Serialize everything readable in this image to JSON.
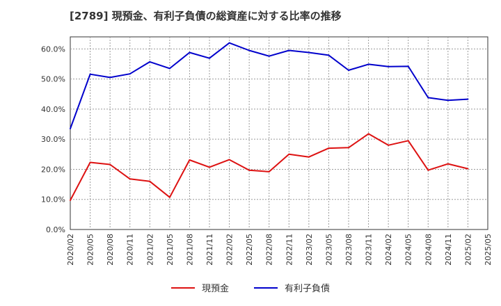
{
  "chart_data": {
    "type": "line",
    "title": "[2789]  現預金、有利子負債の総資産に対する比率の推移",
    "xlabel": "",
    "ylabel": "",
    "ylim": [
      0,
      64
    ],
    "yticks": [
      0,
      10,
      20,
      30,
      40,
      50,
      60
    ],
    "ytick_labels": [
      "0.0%",
      "10.0%",
      "20.0%",
      "30.0%",
      "40.0%",
      "50.0%",
      "60.0%"
    ],
    "x": [
      "2020/02",
      "2020/05",
      "2020/08",
      "2020/11",
      "2021/02",
      "2021/05",
      "2021/08",
      "2021/11",
      "2022/02",
      "2022/05",
      "2022/08",
      "2022/11",
      "2023/02",
      "2023/05",
      "2023/08",
      "2023/11",
      "2024/02",
      "2024/05",
      "2024/08",
      "2024/11",
      "2025/02",
      "2025/05"
    ],
    "series": [
      {
        "name": "現預金",
        "color": "#dd1111",
        "values": [
          9.7,
          22.3,
          21.6,
          16.8,
          16.0,
          10.7,
          23.1,
          20.7,
          23.2,
          19.7,
          19.2,
          25.0,
          24.1,
          27.0,
          27.2,
          31.8,
          28.0,
          29.5,
          19.7,
          21.8,
          20.2,
          null
        ]
      },
      {
        "name": "有利子負債",
        "color": "#0000cc",
        "values": [
          33.5,
          51.6,
          50.5,
          51.7,
          55.7,
          53.5,
          58.8,
          56.9,
          62.0,
          59.5,
          57.6,
          59.5,
          58.8,
          57.9,
          52.9,
          54.9,
          54.1,
          54.2,
          43.8,
          42.9,
          43.3,
          null
        ]
      }
    ],
    "grid": true,
    "legend_position": "bottom-center"
  }
}
